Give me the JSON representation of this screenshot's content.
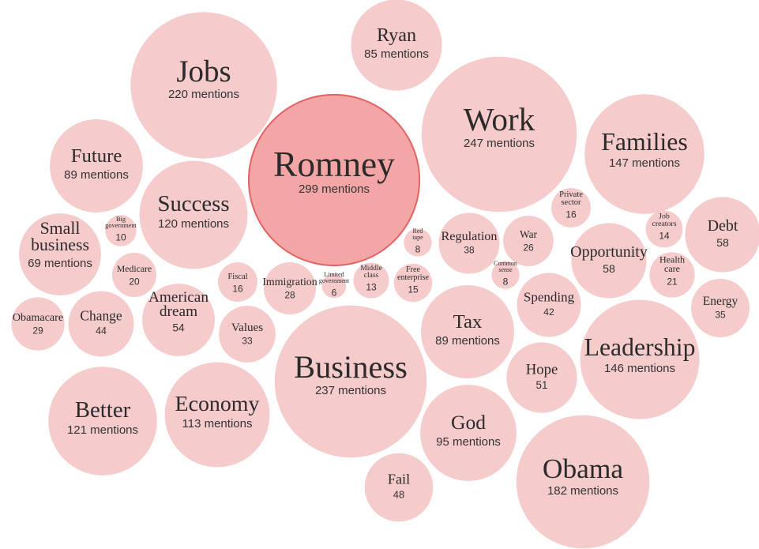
{
  "chart_data": {
    "type": "bubble",
    "categories": [
      "Jobs",
      "Ryan",
      "Work",
      "Families",
      "Romney",
      "Future",
      "Success",
      "Big government",
      "Small business",
      "Medicare",
      "Fiscal",
      "Immigration",
      "Limited government",
      "Middle class",
      "Free enterprise",
      "Red tape",
      "Regulation",
      "War",
      "Private sector",
      "Common sense",
      "Opportunity",
      "Job creators",
      "Health care",
      "Debt",
      "Obamacare",
      "Change",
      "American dream",
      "Values",
      "Business",
      "Tax",
      "Spending",
      "Energy",
      "Hope",
      "Leadership",
      "Better",
      "Economy",
      "God",
      "Fail",
      "Obama"
    ],
    "values": [
      220,
      85,
      247,
      147,
      299,
      89,
      120,
      10,
      69,
      20,
      16,
      28,
      6,
      13,
      15,
      8,
      38,
      26,
      16,
      8,
      58,
      14,
      21,
      58,
      29,
      44,
      54,
      33,
      237,
      89,
      42,
      35,
      51,
      146,
      121,
      113,
      95,
      48,
      182
    ],
    "value_labels": [
      "220 mentions",
      "85 mentions",
      "247 mentions",
      "147 mentions",
      "299 mentions",
      "89 mentions",
      "120 mentions",
      "10",
      "69 mentions",
      "20",
      "16",
      "28",
      "6",
      "13",
      "15",
      "8",
      "38",
      "26",
      "16",
      "8",
      "58",
      "14",
      "21",
      "58",
      "29",
      "44",
      "54",
      "33",
      "237 mentions",
      "89 mentions",
      "42",
      "35",
      "51",
      "146 mentions",
      "121 mentions",
      "113 mentions",
      "95 mentions",
      "48",
      "182 mentions"
    ],
    "colors": [
      "#f5cbcc",
      "#f5cbcc",
      "#f5cbcc",
      "#f5cbcc",
      "#f3a6a5",
      "#f5cbcc",
      "#f5cbcc",
      "#f5cbcc",
      "#f5cbcc",
      "#f5cbcc",
      "#f5cbcc",
      "#f5cbcc",
      "#f5cbcc",
      "#f5cbcc",
      "#f5cbcc",
      "#f5cbcc",
      "#f5cbcc",
      "#f5cbcc",
      "#f5cbcc",
      "#f5cbcc",
      "#f5cbcc",
      "#f5cbcc",
      "#f5cbcc",
      "#f5cbcc",
      "#f5cbcc",
      "#f5cbcc",
      "#f5cbcc",
      "#f5cbcc",
      "#f5cbcc",
      "#f5cbcc",
      "#f5cbcc",
      "#f5cbcc",
      "#f5cbcc",
      "#f5cbcc",
      "#f5cbcc",
      "#f5cbcc",
      "#f5cbcc",
      "#f5cbcc",
      "#f5cbcc"
    ]
  }
}
